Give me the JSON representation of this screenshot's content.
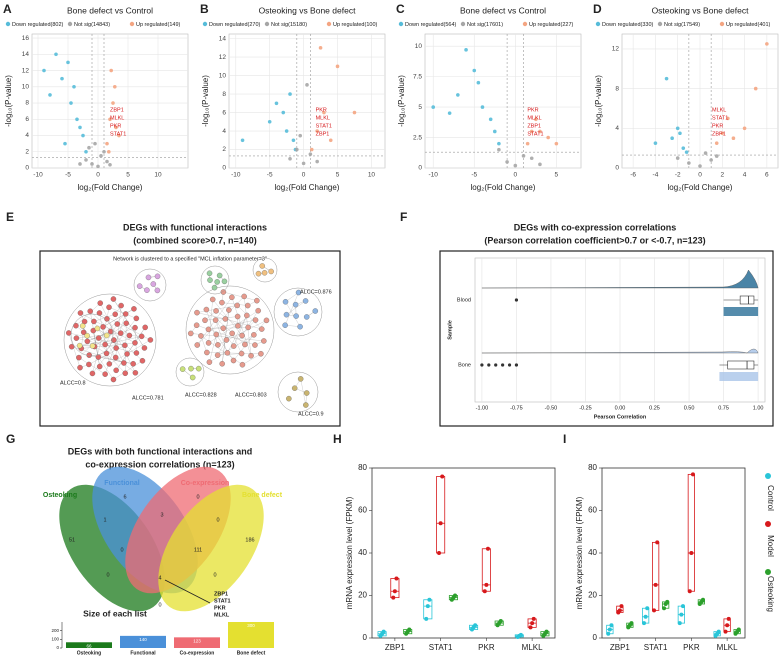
{
  "chart_data": [
    {
      "type": "volcano",
      "panel": "A",
      "title": "Bone defect vs Control",
      "xlabel": "log₂(Fold Change)",
      "ylabel": "-log₁₀(P-value)",
      "xlim": [
        -11,
        15
      ],
      "xticks": [
        -10,
        -5,
        0,
        5,
        10
      ],
      "ylim": [
        0,
        16.5
      ],
      "yticks": [
        0,
        2,
        4,
        6,
        8,
        10,
        12,
        14,
        16
      ],
      "thresholds_x": [
        -1,
        1
      ],
      "threshold_y": 1.3,
      "annotations": [
        "ZBP1",
        "MLKL",
        "PKR",
        "STAT1"
      ],
      "series": [
        {
          "name": "Down regulated(802)",
          "color": "#56bcd9",
          "x": [
            -9,
            -8,
            -7,
            -6,
            -5,
            -4.5,
            -4,
            -3.5,
            -3,
            -2.5,
            -2,
            -5.5
          ],
          "values": [
            12,
            9,
            14,
            11,
            13,
            8,
            10,
            6,
            5,
            4,
            2,
            3
          ]
        },
        {
          "name": "Not sig(14843)",
          "color": "#a6a6a6",
          "x": [
            -2,
            -1.5,
            -1,
            -0.5,
            0,
            0.5,
            1,
            1.5,
            -3,
            2
          ],
          "values": [
            1,
            2.5,
            0.5,
            3,
            0.2,
            1.5,
            2,
            0.8,
            0.5,
            0.4
          ]
        },
        {
          "name": "Up regulated(149)",
          "color": "#f4a582",
          "x": [
            1.5,
            2,
            2.2,
            2.5,
            3,
            2.8,
            3.5,
            1.8
          ],
          "values": [
            3,
            6,
            12,
            8,
            5,
            10,
            4,
            2
          ]
        }
      ]
    },
    {
      "type": "volcano",
      "panel": "B",
      "title": "Osteoking vs Bone defect",
      "xlabel": "log₂(Fold Change)",
      "ylabel": "-log₁₀(P-value)",
      "xlim": [
        -11,
        12
      ],
      "xticks": [
        -10,
        -5,
        0,
        5,
        10
      ],
      "ylim": [
        0,
        14.5
      ],
      "yticks": [
        0,
        2,
        4,
        6,
        8,
        10,
        12,
        14
      ],
      "thresholds_x": [
        -1,
        1
      ],
      "threshold_y": 1.3,
      "annotations": [
        "PKR",
        "MLKL",
        "STAT1",
        "ZBP1"
      ],
      "series": [
        {
          "name": "Down regulated(270)",
          "color": "#56bcd9",
          "x": [
            -9,
            -5,
            -4,
            -3,
            -2.5,
            -2,
            -1.5,
            -1.2
          ],
          "values": [
            3,
            5,
            7,
            6,
            4,
            8,
            3,
            2
          ]
        },
        {
          "name": "Not sig(15180)",
          "color": "#a6a6a6",
          "x": [
            -2,
            -1,
            -0.5,
            0,
            0.5,
            1,
            2
          ],
          "values": [
            1,
            2,
            3.5,
            0.5,
            9,
            1.5,
            0.7
          ]
        },
        {
          "name": "Up regulated(100)",
          "color": "#f4a582",
          "x": [
            1.2,
            2,
            2.5,
            3,
            4,
            5,
            7.5
          ],
          "values": [
            2,
            4,
            13,
            6,
            3,
            11,
            6
          ]
        }
      ]
    },
    {
      "type": "volcano",
      "panel": "C",
      "title": "Bone defect vs Control",
      "xlabel": "log₂(Fold Change)",
      "ylabel": "-log₁₀(P-value)",
      "xlim": [
        -11,
        8
      ],
      "xticks": [
        -10,
        -5,
        0,
        5
      ],
      "ylim": [
        0,
        11
      ],
      "yticks": [
        0,
        2.5,
        5,
        7.5,
        10
      ],
      "thresholds_x": [
        -1,
        1
      ],
      "threshold_y": 1.3,
      "annotations": [
        "PKR",
        "MLKL",
        "ZBP1",
        "STAT1"
      ],
      "series": [
        {
          "name": "Down regulated(564)",
          "color": "#56bcd9",
          "x": [
            -10,
            -8,
            -7,
            -6,
            -5,
            -4.5,
            -4,
            -3,
            -2.5,
            -2
          ],
          "values": [
            5,
            4.5,
            6,
            9.7,
            8,
            7,
            5,
            4,
            3,
            2
          ]
        },
        {
          "name": "Not sig(17601)",
          "color": "#a6a6a6",
          "x": [
            -2,
            -1,
            0,
            1,
            2,
            3
          ],
          "values": [
            1.5,
            0.5,
            0.2,
            1,
            0.8,
            0.3
          ]
        },
        {
          "name": "Up regulated(227)",
          "color": "#f4a582",
          "x": [
            1.5,
            2,
            2.5,
            3,
            4,
            5
          ],
          "values": [
            2,
            3,
            4,
            3,
            2.5,
            2
          ]
        }
      ]
    },
    {
      "type": "volcano",
      "panel": "D",
      "title": "Osteoking vs Bone defect",
      "xlabel": "log₂(Fold Change)",
      "ylabel": "-log₁₀(P-value)",
      "xlim": [
        -7,
        7
      ],
      "xticks": [
        -6,
        -4,
        -2,
        0,
        2,
        4,
        6
      ],
      "ylim": [
        0,
        13.5
      ],
      "yticks": [
        0,
        4,
        8,
        12
      ],
      "thresholds_x": [
        -1,
        1
      ],
      "threshold_y": 1.3,
      "annotations": [
        "MLKL",
        "STAT1",
        "PKR",
        "ZBP1"
      ],
      "series": [
        {
          "name": "Down regulated(330)",
          "color": "#56bcd9",
          "x": [
            -4,
            -3,
            -2.5,
            -2,
            -1.8,
            -1.5,
            -1.2
          ],
          "values": [
            2.5,
            9,
            3,
            4,
            3.5,
            2,
            1.6
          ]
        },
        {
          "name": "Not sig(17549)",
          "color": "#a6a6a6",
          "x": [
            -2,
            -1,
            0,
            0.5,
            1,
            1.5
          ],
          "values": [
            1,
            0.5,
            0.2,
            1.5,
            0.8,
            1.2
          ]
        },
        {
          "name": "Up regulated(401)",
          "color": "#f4a582",
          "x": [
            1.5,
            2,
            2.5,
            3,
            4,
            5,
            6
          ],
          "values": [
            2.5,
            3.5,
            5,
            3,
            4,
            8,
            12.5
          ]
        }
      ]
    },
    {
      "type": "network",
      "panel": "E",
      "title": "DEGs with functional interactions",
      "subtitle": "(combined score>0.7, n=140)",
      "note": "Network is clustered to a specified \"MCL inflation parameter=3\"",
      "labels": [
        "ALCC=0.876",
        "ALCC=0.8",
        "ALCC=0.781",
        "ALCC=0.828",
        "ALCC=0.803",
        "ALCC=0.9"
      ]
    },
    {
      "type": "raincloud",
      "panel": "F",
      "title": "DEGs with co-expression correlations",
      "subtitle": "(Pearson correlation coefficient>0.7 or <-0.7, n=123)",
      "xlabel": "Pearson Correlation",
      "ylabel": "Sample",
      "categories": [
        "Blood",
        "Bone"
      ],
      "colors": [
        "#2a6f97",
        "#a9c4e8"
      ],
      "whisker_low": [
        0.75,
        0.72
      ],
      "q1": [
        0.87,
        0.78
      ],
      "median": [
        0.93,
        0.92
      ],
      "q3": [
        0.97,
        0.97
      ],
      "whisker_high": [
        1,
        1
      ],
      "outliers": [
        [
          -0.75
        ],
        [
          -1,
          -0.95,
          -0.9,
          -0.85,
          -0.8,
          -0.75
        ]
      ],
      "xlim": [
        -1.05,
        1.05
      ],
      "xticks": [
        {
          "value": -1,
          "label": "-1.00"
        },
        {
          "value": -0.75,
          "label": "-0.75"
        },
        {
          "value": -0.5,
          "label": "-0.50"
        },
        {
          "value": -0.25,
          "label": "-0.25"
        },
        {
          "value": 0,
          "label": "0.00"
        },
        {
          "value": 0.25,
          "label": "0.25"
        },
        {
          "value": 0.5,
          "label": "0.50"
        },
        {
          "value": 0.75,
          "label": "0.75"
        },
        {
          "value": 1,
          "label": "1.00"
        }
      ],
      "grid": true
    },
    {
      "type": "venn",
      "panel": "G",
      "title": [
        "DEGs with both functional interactions and",
        "co-expression correlations (n=123)"
      ],
      "sets": [
        {
          "name": "Osteoking",
          "color": "#1b7a1b"
        },
        {
          "name": "Functional",
          "color": "#4a90d9"
        },
        {
          "name": "Co-expression",
          "color": "#ef6b73"
        },
        {
          "name": "Bone defect",
          "color": "#e4e030"
        }
      ],
      "regions": [
        6,
        0,
        51,
        186,
        3,
        1,
        0,
        0,
        111,
        0,
        4,
        0,
        0
      ],
      "genes": [
        "ZBP1",
        "STAT1",
        "PKR",
        "MLKL"
      ],
      "bars": {
        "title": "Size of each list",
        "values": [
          66,
          140,
          123,
          300
        ],
        "ylim": [
          0,
          300
        ],
        "yticks": [
          0,
          100,
          200
        ]
      }
    },
    {
      "type": "box",
      "panel": "H",
      "ylabel": "mRNA expression level (FPKM)",
      "categories": [
        "ZBP1",
        "STAT1",
        "PKR",
        "MLKL"
      ],
      "ylim": [
        0,
        80
      ],
      "yticks": [
        0,
        20,
        40,
        60,
        80
      ],
      "series": [
        {
          "name": "Control",
          "color": "#29c5d8",
          "low": [
            1,
            9,
            4,
            0.5
          ],
          "values": [
            2,
            15,
            5,
            1
          ],
          "high": [
            3,
            18,
            6,
            1.5
          ],
          "points": [
            [
              1,
              2,
              3
            ],
            [
              9,
              15,
              18
            ],
            [
              4,
              5,
              6
            ],
            [
              0.5,
              1,
              1.5
            ]
          ]
        },
        {
          "name": "Model",
          "color": "#d7191c",
          "low": [
            19,
            40,
            22,
            5
          ],
          "values": [
            22,
            54,
            25,
            7
          ],
          "high": [
            28,
            76,
            42,
            9
          ],
          "points": [
            [
              19,
              22,
              28
            ],
            [
              40,
              54,
              76
            ],
            [
              22,
              25,
              42
            ],
            [
              5,
              7,
              9
            ]
          ]
        },
        {
          "name": "Osteoking",
          "color": "#2ca02c",
          "low": [
            2,
            18,
            6,
            1
          ],
          "values": [
            3,
            19,
            7,
            2
          ],
          "high": [
            4,
            20,
            8,
            3
          ],
          "points": [
            [
              2,
              3,
              4
            ],
            [
              18,
              19,
              20
            ],
            [
              6,
              7,
              8
            ],
            [
              1,
              2,
              3
            ]
          ]
        }
      ]
    },
    {
      "type": "box",
      "panel": "I",
      "ylabel": "mRNA expression level (FPKM)",
      "categories": [
        "ZBP1",
        "STAT1",
        "PKR",
        "MLKL"
      ],
      "ylim": [
        0,
        80
      ],
      "yticks": [
        0,
        20,
        40,
        60,
        80
      ],
      "legend": true,
      "series": [
        {
          "name": "Control",
          "color": "#29c5d8",
          "low": [
            2,
            7,
            7,
            1
          ],
          "values": [
            4,
            10,
            11,
            2
          ],
          "high": [
            6,
            14,
            15,
            3
          ],
          "points": [
            [
              2,
              4,
              6
            ],
            [
              7,
              10,
              14
            ],
            [
              7,
              11,
              15
            ],
            [
              1,
              2,
              3
            ]
          ]
        },
        {
          "name": "Model",
          "color": "#d7191c",
          "low": [
            12,
            13,
            22,
            3
          ],
          "values": [
            13,
            25,
            40,
            6
          ],
          "high": [
            15,
            45,
            77,
            9
          ],
          "points": [
            [
              12,
              13,
              15
            ],
            [
              13,
              25,
              45
            ],
            [
              22,
              40,
              77
            ],
            [
              3,
              6,
              9
            ]
          ]
        },
        {
          "name": "Osteoking",
          "color": "#2ca02c",
          "low": [
            5,
            14,
            16,
            2
          ],
          "values": [
            6,
            16,
            17,
            3
          ],
          "high": [
            7,
            17,
            18,
            4
          ],
          "points": [
            [
              5,
              6,
              7
            ],
            [
              14,
              16,
              17
            ],
            [
              16,
              17,
              18
            ],
            [
              2,
              3,
              4
            ]
          ]
        }
      ]
    }
  ]
}
